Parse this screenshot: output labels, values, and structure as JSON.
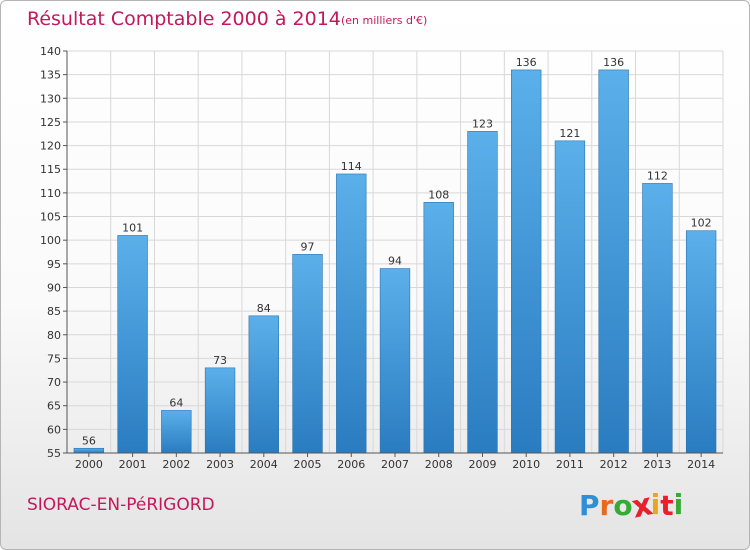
{
  "header": {
    "title": "Résultat Comptable 2000 à 2014",
    "subtitle": "(en milliers d'€)"
  },
  "footer": {
    "commune": "SIORAC-EN-PéRIGORD",
    "logo_letters": [
      "P",
      "r",
      "o",
      "x",
      "i",
      "t",
      "i"
    ],
    "logo_colors": [
      "#2e8fd8",
      "#e8681e",
      "#39a935",
      "#e8202a",
      "#f0a21e",
      "#e8202a",
      "#39a935"
    ]
  },
  "colors": {
    "bar_light": "#5bb0ea",
    "bar_dark": "#2a7cc0",
    "grid": "#d8d8d8",
    "axis": "#555555",
    "text": "#333333",
    "brand": "#c4185c"
  },
  "chart_data": {
    "type": "bar",
    "title": "Résultat Comptable 2000 à 2014",
    "subtitle": "(en milliers d'€)",
    "xlabel": "",
    "ylabel": "",
    "categories": [
      "2000",
      "2001",
      "2002",
      "2003",
      "2004",
      "2005",
      "2006",
      "2007",
      "2008",
      "2009",
      "2010",
      "2011",
      "2012",
      "2013",
      "2014"
    ],
    "values": [
      56,
      101,
      64,
      73,
      84,
      97,
      114,
      94,
      108,
      123,
      136,
      121,
      136,
      112,
      102
    ],
    "ylim": [
      55,
      140
    ],
    "yticks": [
      55,
      60,
      65,
      70,
      75,
      80,
      85,
      90,
      95,
      100,
      105,
      110,
      115,
      120,
      125,
      130,
      135,
      140
    ],
    "grid": true,
    "data_labels": true
  }
}
